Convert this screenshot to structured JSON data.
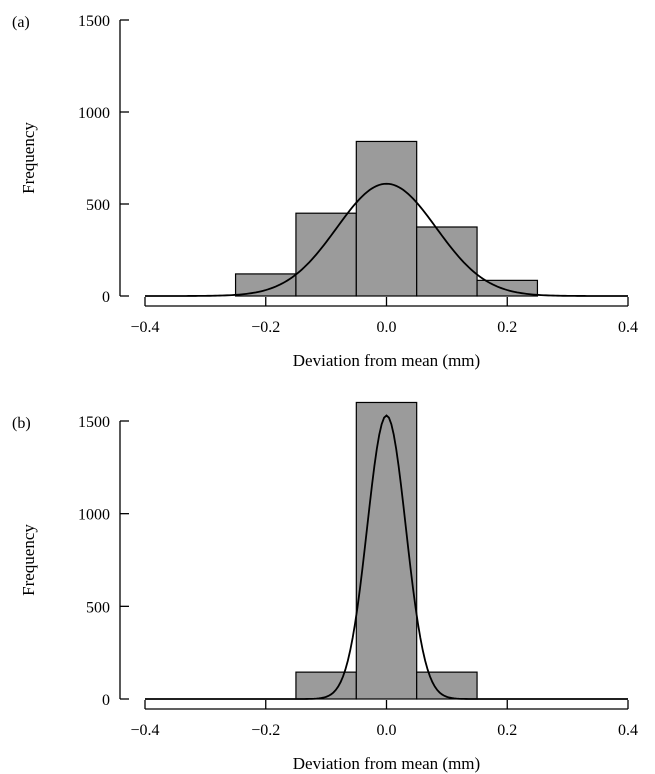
{
  "chart_data": [
    {
      "type": "bar",
      "panel_label": "(a)",
      "xlabel": "Deviation from mean (mm)",
      "ylabel": "Frequency",
      "xlim": [
        -0.4,
        0.4
      ],
      "ylim": [
        0,
        1500
      ],
      "xticks": [
        -0.4,
        -0.2,
        0.0,
        0.2,
        0.4
      ],
      "xtick_labels": [
        "−0.4",
        "−0.2",
        "0.0",
        "0.2",
        "0.4"
      ],
      "yticks": [
        0,
        500,
        1000,
        1500
      ],
      "ytick_labels": [
        "0",
        "500",
        "1000",
        "1500"
      ],
      "bins": [
        {
          "x0": -0.25,
          "x1": -0.15,
          "value": 120
        },
        {
          "x0": -0.15,
          "x1": -0.05,
          "value": 450
        },
        {
          "x0": -0.05,
          "x1": 0.05,
          "value": 840
        },
        {
          "x0": 0.05,
          "x1": 0.15,
          "value": 375
        },
        {
          "x0": 0.15,
          "x1": 0.25,
          "value": 85
        }
      ],
      "curve": {
        "type": "normal",
        "mean": 0.0,
        "sd": 0.0825,
        "peak": 610,
        "range": [
          -0.4,
          0.4
        ]
      },
      "grid": false
    },
    {
      "type": "bar",
      "panel_label": "(b)",
      "xlabel": "Deviation from mean (mm)",
      "ylabel": "Frequency",
      "xlim": [
        -0.4,
        0.4
      ],
      "ylim": [
        0,
        1500
      ],
      "xticks": [
        -0.4,
        -0.2,
        0.0,
        0.2,
        0.4
      ],
      "xtick_labels": [
        "−0.4",
        "−0.2",
        "0.0",
        "0.2",
        "0.4"
      ],
      "yticks": [
        0,
        500,
        1000,
        1500
      ],
      "ytick_labels": [
        "0",
        "500",
        "1000",
        "1500"
      ],
      "bins": [
        {
          "x0": -0.15,
          "x1": -0.05,
          "value": 145
        },
        {
          "x0": -0.05,
          "x1": 0.05,
          "value": 1600
        },
        {
          "x0": 0.05,
          "x1": 0.15,
          "value": 145
        }
      ],
      "curve": {
        "type": "normal",
        "mean": 0.0,
        "sd": 0.032,
        "peak": 1530,
        "range": [
          -0.4,
          0.4
        ]
      },
      "grid": false
    }
  ]
}
